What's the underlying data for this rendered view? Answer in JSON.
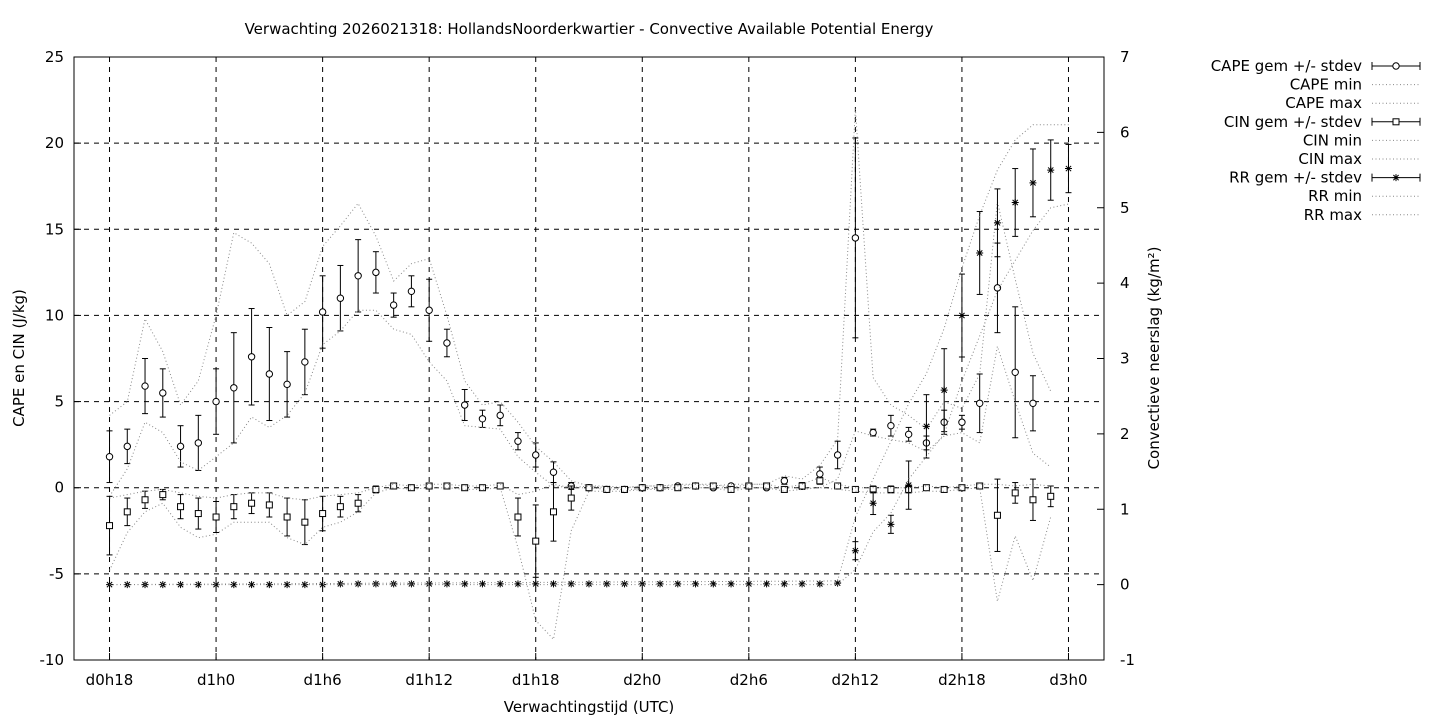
{
  "chart_data": {
    "type": "line",
    "title": "Verwachting 2026021318: HollandsNoorderkwartier - Convective Available Potential Energy",
    "xlabel": "Verwachtingstijd (UTC)",
    "ylabel_left": "CAPE en CIN (J/kg)",
    "ylabel_right": "Convectieve neerslag (kg/m²)",
    "x_ticks": [
      "d0h18",
      "d1h0",
      "d1h6",
      "d1h12",
      "d1h18",
      "d2h0",
      "d2h6",
      "d2h12",
      "d2h18",
      "d3h0"
    ],
    "x_unit": "hours since d0h18",
    "x_range": [
      -2,
      56
    ],
    "y_left_range": [
      -10,
      25
    ],
    "y_left_ticks": [
      -10,
      -5,
      0,
      5,
      10,
      15,
      20,
      25
    ],
    "y_right_range": [
      -1,
      7
    ],
    "y_right_ticks": [
      -1,
      0,
      1,
      2,
      3,
      4,
      5,
      6,
      7
    ],
    "grid": true,
    "legend_position": "right",
    "series": [
      {
        "name": "CAPE gem +/- stdev",
        "axis": "left",
        "marker": "circle",
        "x": [
          0,
          1,
          2,
          3,
          4,
          5,
          6,
          7,
          8,
          9,
          10,
          11,
          12,
          13,
          14,
          15,
          16,
          17,
          18,
          19,
          20,
          21,
          22,
          23,
          24,
          25,
          26,
          27,
          28,
          29,
          30,
          31,
          32,
          33,
          34,
          35,
          36,
          37,
          38,
          39,
          40,
          41,
          42,
          43,
          44,
          45,
          46,
          47,
          48,
          49,
          50,
          51,
          52,
          53,
          54
        ],
        "y": [
          1.8,
          2.4,
          5.9,
          5.5,
          2.4,
          2.6,
          5.0,
          5.8,
          7.6,
          6.6,
          6.0,
          7.3,
          10.2,
          11.0,
          12.3,
          12.5,
          10.6,
          11.4,
          10.3,
          8.4,
          4.8,
          4.0,
          4.2,
          2.7,
          1.9,
          0.9,
          0.1,
          0,
          -0.1,
          -0.1,
          0,
          0,
          0.1,
          0.1,
          0,
          0.1,
          0.1,
          0,
          0.4,
          0.1,
          0.8,
          1.9,
          14.5,
          3.2,
          3.6,
          3.1,
          2.6,
          3.8,
          3.8,
          4.9,
          11.6,
          6.7,
          4.9,
          null,
          null
        ],
        "err": [
          1.5,
          1.0,
          1.6,
          1.4,
          1.2,
          1.6,
          1.9,
          3.2,
          2.8,
          2.7,
          1.9,
          1.9,
          2.1,
          1.9,
          2.1,
          1.2,
          0.7,
          0.9,
          1.8,
          0.8,
          0.9,
          0.5,
          0.6,
          0.5,
          0.7,
          0.6,
          0.2,
          0.1,
          0.1,
          0.1,
          0.1,
          0.1,
          0.1,
          0.1,
          0.1,
          0.1,
          0.1,
          0.1,
          0.2,
          0.2,
          0.4,
          0.8,
          5.8,
          0.2,
          0.6,
          0.4,
          0.4,
          0.7,
          0.4,
          1.7,
          2.6,
          3.8,
          1.6,
          0,
          0
        ]
      },
      {
        "name": "CAPE min",
        "axis": "left",
        "style": "dotted",
        "x": [
          0,
          1,
          2,
          3,
          4,
          5,
          6,
          7,
          8,
          9,
          10,
          11,
          12,
          13,
          14,
          15,
          16,
          17,
          18,
          19,
          20,
          21,
          22,
          23,
          24,
          25,
          26,
          27,
          28,
          29,
          30,
          31,
          32,
          33,
          34,
          35,
          36,
          37,
          38,
          39,
          40,
          41,
          42,
          43,
          44,
          45,
          46,
          47,
          48,
          49,
          50,
          51,
          52,
          53
        ],
        "y": [
          -0.5,
          1.1,
          3.8,
          3.2,
          1.5,
          1.0,
          1.8,
          2.6,
          4.1,
          3.5,
          4.2,
          5.5,
          8.3,
          9.1,
          10.3,
          10.3,
          9.2,
          8.9,
          7.3,
          6.2,
          3.6,
          3.5,
          3.4,
          1.8,
          0.9,
          0.1,
          0,
          0,
          -0.1,
          -0.1,
          -0.1,
          0,
          0,
          0,
          0,
          0,
          0,
          0,
          0,
          0,
          0,
          0.5,
          3.3,
          3.0,
          2.8,
          2.6,
          2.1,
          3.0,
          3.2,
          2.6,
          8.2,
          5.0,
          2.0,
          1.2
        ]
      },
      {
        "name": "CAPE max",
        "axis": "left",
        "style": "dotted",
        "x": [
          0,
          1,
          2,
          3,
          4,
          5,
          6,
          7,
          8,
          9,
          10,
          11,
          12,
          13,
          14,
          15,
          16,
          17,
          18,
          19,
          20,
          21,
          22,
          23,
          24,
          25,
          26,
          27,
          28,
          29,
          30,
          31,
          32,
          33,
          34,
          35,
          36,
          37,
          38,
          39,
          40,
          41,
          42,
          43,
          44,
          45,
          46,
          47,
          48,
          49,
          50,
          51,
          52,
          53
        ],
        "y": [
          4.2,
          5.0,
          9.8,
          7.9,
          4.8,
          6.2,
          10.0,
          14.8,
          14.2,
          13.0,
          10.0,
          10.8,
          14.0,
          15.2,
          16.5,
          14.6,
          12.0,
          13.0,
          13.3,
          10.0,
          6.2,
          4.8,
          5.0,
          3.8,
          2.4,
          1.5,
          0.4,
          0.1,
          0.1,
          0,
          0.1,
          0.1,
          0.2,
          0.2,
          0.1,
          0.2,
          0.2,
          0.2,
          0.7,
          0.5,
          1.3,
          2.8,
          22.0,
          6.4,
          4.8,
          4.2,
          3.4,
          5.0,
          4.6,
          6.6,
          16.6,
          12.1,
          7.8,
          5.6
        ]
      },
      {
        "name": "CIN gem +/- stdev",
        "axis": "left",
        "marker": "square",
        "x": [
          0,
          1,
          2,
          3,
          4,
          5,
          6,
          7,
          8,
          9,
          10,
          11,
          12,
          13,
          14,
          15,
          16,
          17,
          18,
          19,
          20,
          21,
          22,
          23,
          24,
          25,
          26,
          27,
          28,
          29,
          30,
          31,
          32,
          33,
          34,
          35,
          36,
          37,
          38,
          39,
          40,
          41,
          42,
          43,
          44,
          45,
          46,
          47,
          48,
          49,
          50,
          51,
          52,
          53,
          54
        ],
        "y": [
          -2.2,
          -1.4,
          -0.7,
          -0.4,
          -1.1,
          -1.5,
          -1.7,
          -1.1,
          -0.9,
          -1.0,
          -1.7,
          -2.0,
          -1.5,
          -1.1,
          -0.9,
          -0.1,
          0.1,
          0,
          0.1,
          0.1,
          0,
          0,
          0.1,
          -1.7,
          -3.1,
          -1.4,
          -0.6,
          0,
          -0.1,
          -0.1,
          0,
          0,
          0,
          0.1,
          0.1,
          -0.1,
          0.1,
          0.1,
          -0.1,
          0.1,
          0.4,
          0.1,
          -0.1,
          -0.1,
          -0.1,
          -0.1,
          0,
          -0.1,
          0,
          0.1,
          -1.6,
          -0.3,
          -0.7,
          -0.5,
          null
        ],
        "err": [
          1.7,
          0.8,
          0.5,
          0.3,
          0.7,
          0.9,
          0.9,
          0.7,
          0.6,
          0.7,
          1.1,
          1.3,
          1.0,
          0.6,
          0.5,
          0.2,
          0.1,
          0.1,
          0.1,
          0.1,
          0.1,
          0.1,
          0.1,
          1.1,
          2.1,
          1.7,
          0.7,
          0.1,
          0.1,
          0.1,
          0.1,
          0.1,
          0.1,
          0.1,
          0.1,
          0.1,
          0.1,
          0.1,
          0.1,
          0.1,
          0.2,
          0.1,
          0.1,
          0.2,
          0.2,
          0.2,
          0.1,
          0.1,
          0.1,
          0.1,
          2.1,
          0.6,
          1.2,
          0.6,
          0
        ]
      },
      {
        "name": "CIN min",
        "axis": "left",
        "style": "dotted",
        "x": [
          0,
          1,
          2,
          3,
          4,
          5,
          6,
          7,
          8,
          9,
          10,
          11,
          12,
          13,
          14,
          15,
          16,
          17,
          18,
          19,
          20,
          21,
          22,
          23,
          24,
          25,
          26,
          27,
          28,
          29,
          30,
          31,
          32,
          33,
          34,
          35,
          36,
          37,
          38,
          39,
          40,
          41,
          42,
          43,
          44,
          45,
          46,
          47,
          48,
          49,
          50,
          51,
          52,
          53
        ],
        "y": [
          -4.8,
          -2.6,
          -1.4,
          -0.9,
          -2.3,
          -2.9,
          -2.7,
          -2.0,
          -2.0,
          -2.0,
          -2.9,
          -3.3,
          -2.3,
          -2.0,
          -1.4,
          -0.3,
          0,
          -0.1,
          0,
          0,
          -0.1,
          -0.1,
          0,
          -3.5,
          -7.7,
          -8.8,
          -2.5,
          -0.2,
          -0.2,
          -0.2,
          -0.1,
          -0.1,
          -0.1,
          0,
          0,
          -0.2,
          0,
          0,
          -0.2,
          -0.1,
          0,
          -0.1,
          -0.2,
          -0.3,
          -0.3,
          -0.3,
          -0.2,
          -0.2,
          -0.1,
          0,
          -6.6,
          -2.8,
          -5.4,
          -1.7
        ]
      },
      {
        "name": "CIN max",
        "axis": "left",
        "style": "dotted",
        "x": [
          0,
          1,
          2,
          3,
          4,
          5,
          6,
          7,
          8,
          9,
          10,
          11,
          12,
          13,
          14,
          15,
          16,
          17,
          18,
          19,
          20,
          21,
          22,
          23,
          24,
          25,
          26,
          27,
          28,
          29,
          30,
          31,
          32,
          33,
          34,
          35,
          36,
          37,
          38,
          39,
          40,
          41,
          42,
          43,
          44,
          45,
          46,
          47,
          48,
          49,
          50,
          51,
          52,
          53
        ],
        "y": [
          -0.6,
          -0.4,
          -0.2,
          -0.1,
          -0.3,
          -0.5,
          -0.6,
          -0.4,
          -0.3,
          -0.3,
          -0.6,
          -0.7,
          -0.5,
          -0.4,
          -0.3,
          0,
          0.2,
          0.1,
          0.2,
          0.2,
          0.1,
          0.1,
          0.2,
          -0.4,
          -0.2,
          0.2,
          0,
          0.1,
          0,
          0,
          0.1,
          0.1,
          0.1,
          0.2,
          0.2,
          0,
          0.2,
          0.2,
          0,
          0.2,
          0.6,
          0.2,
          0,
          0,
          0,
          0,
          0.1,
          0,
          0.1,
          0.2,
          0.2,
          0.1,
          0.2,
          0.1
        ]
      },
      {
        "name": "RR gem +/- stdev",
        "axis": "right",
        "marker": "star",
        "x": [
          0,
          1,
          2,
          3,
          4,
          5,
          6,
          7,
          8,
          9,
          10,
          11,
          12,
          13,
          14,
          15,
          16,
          17,
          18,
          19,
          20,
          21,
          22,
          23,
          24,
          25,
          26,
          27,
          28,
          29,
          30,
          31,
          32,
          33,
          34,
          35,
          36,
          37,
          38,
          39,
          40,
          41,
          42,
          43,
          44,
          45,
          46,
          47,
          48,
          49,
          50,
          51,
          52,
          53,
          54
        ],
        "y": [
          0,
          0,
          0,
          0,
          0,
          0,
          0,
          0,
          0,
          0,
          0,
          0,
          0,
          0.01,
          0.01,
          0.01,
          0.01,
          0.01,
          0.01,
          0.01,
          0.01,
          0.01,
          0.01,
          0.01,
          0.01,
          0.01,
          0.01,
          0.01,
          0.01,
          0.01,
          0.01,
          0.01,
          0.01,
          0.01,
          0.01,
          0.01,
          0.01,
          0.01,
          0.01,
          0.01,
          0.01,
          0.02,
          0.45,
          1.08,
          0.8,
          1.32,
          2.1,
          2.58,
          3.57,
          4.4,
          4.8,
          5.07,
          5.33,
          5.5,
          5.52
        ],
        "err": [
          0,
          0,
          0,
          0,
          0,
          0,
          0,
          0,
          0,
          0,
          0,
          0,
          0,
          0,
          0,
          0,
          0,
          0,
          0,
          0,
          0,
          0,
          0,
          0,
          0,
          0,
          0,
          0,
          0,
          0,
          0,
          0,
          0,
          0,
          0,
          0,
          0,
          0,
          0,
          0,
          0,
          0,
          0.12,
          0.15,
          0.12,
          0.32,
          0.42,
          0.55,
          0.55,
          0.55,
          0.45,
          0.45,
          0.45,
          0.4,
          0.32
        ]
      },
      {
        "name": "RR min",
        "axis": "right",
        "style": "dotted",
        "x": [
          0,
          41,
          42,
          43,
          44,
          45,
          46,
          47,
          48,
          49,
          50,
          51,
          52,
          53,
          54
        ],
        "y": [
          0,
          0,
          0.2,
          0.7,
          0.95,
          1.4,
          1.7,
          2.0,
          2.7,
          3.3,
          3.9,
          4.3,
          4.7,
          5.0,
          5.05
        ]
      },
      {
        "name": "RR max",
        "axis": "right",
        "style": "dotted",
        "x": [
          0,
          41,
          42,
          43,
          44,
          45,
          46,
          47,
          48,
          49,
          50,
          51,
          52,
          53,
          54
        ],
        "y": [
          0,
          0.05,
          0.9,
          1.4,
          1.9,
          2.4,
          2.8,
          3.4,
          4.2,
          4.9,
          5.5,
          5.9,
          6.1,
          6.1,
          6.1
        ]
      }
    ]
  }
}
